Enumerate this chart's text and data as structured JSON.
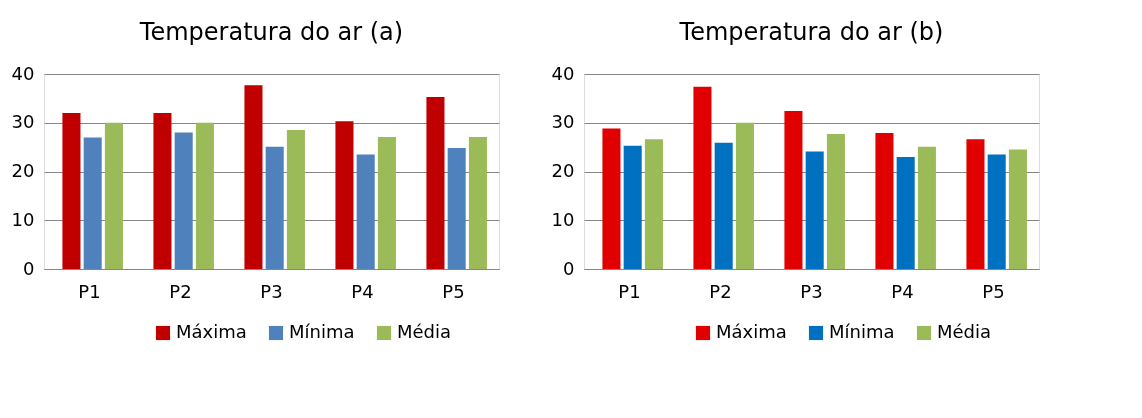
{
  "chart_data": [
    {
      "type": "bar",
      "title": "Temperatura do ar (a)",
      "categories": [
        "P1",
        "P2",
        "P3",
        "P4",
        "P5"
      ],
      "ylim": [
        0,
        40
      ],
      "yticks": [
        0,
        10,
        20,
        30,
        40
      ],
      "grid": "y",
      "legend": "bottom",
      "series": [
        {
          "name": "Máxima",
          "color": "#c00000",
          "values": [
            32,
            32,
            37.7,
            30.3,
            35.3
          ]
        },
        {
          "name": "Mínima",
          "color": "#4f81bd",
          "values": [
            27,
            28,
            25.1,
            23.5,
            24.8
          ]
        },
        {
          "name": "Média",
          "color": "#9bbb59",
          "values": [
            30,
            30,
            28.5,
            27.1,
            27.1
          ]
        }
      ]
    },
    {
      "type": "bar",
      "title": "Temperatura do ar (b)",
      "categories": [
        "P1",
        "P2",
        "P3",
        "P4",
        "P5"
      ],
      "ylim": [
        0,
        40
      ],
      "yticks": [
        0,
        10,
        20,
        30,
        40
      ],
      "grid": "y",
      "legend": "bottom",
      "series": [
        {
          "name": "Máxima",
          "color": "#e00000",
          "values": [
            28.8,
            37.4,
            32.4,
            27.9,
            26.6
          ]
        },
        {
          "name": "Mínima",
          "color": "#0070c0",
          "values": [
            25.3,
            25.9,
            24.1,
            23.0,
            23.5
          ]
        },
        {
          "name": "Média",
          "color": "#9bbb59",
          "values": [
            26.6,
            30.0,
            27.7,
            25.1,
            24.5
          ]
        }
      ]
    }
  ]
}
